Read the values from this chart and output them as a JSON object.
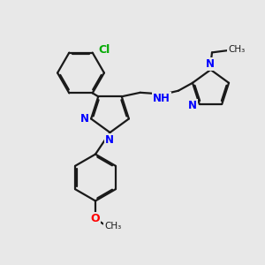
{
  "bg_color": "#e8e8e8",
  "bond_color": "#1a1a1a",
  "N_color": "#0000ff",
  "O_color": "#ff0000",
  "Cl_color": "#00aa00",
  "ethyl_N_color": "#0000ff",
  "line_width": 1.6,
  "dbo": 0.055,
  "figsize": [
    3.0,
    3.0
  ],
  "dpi": 100,
  "xlim": [
    0,
    10
  ],
  "ylim": [
    0,
    10
  ]
}
